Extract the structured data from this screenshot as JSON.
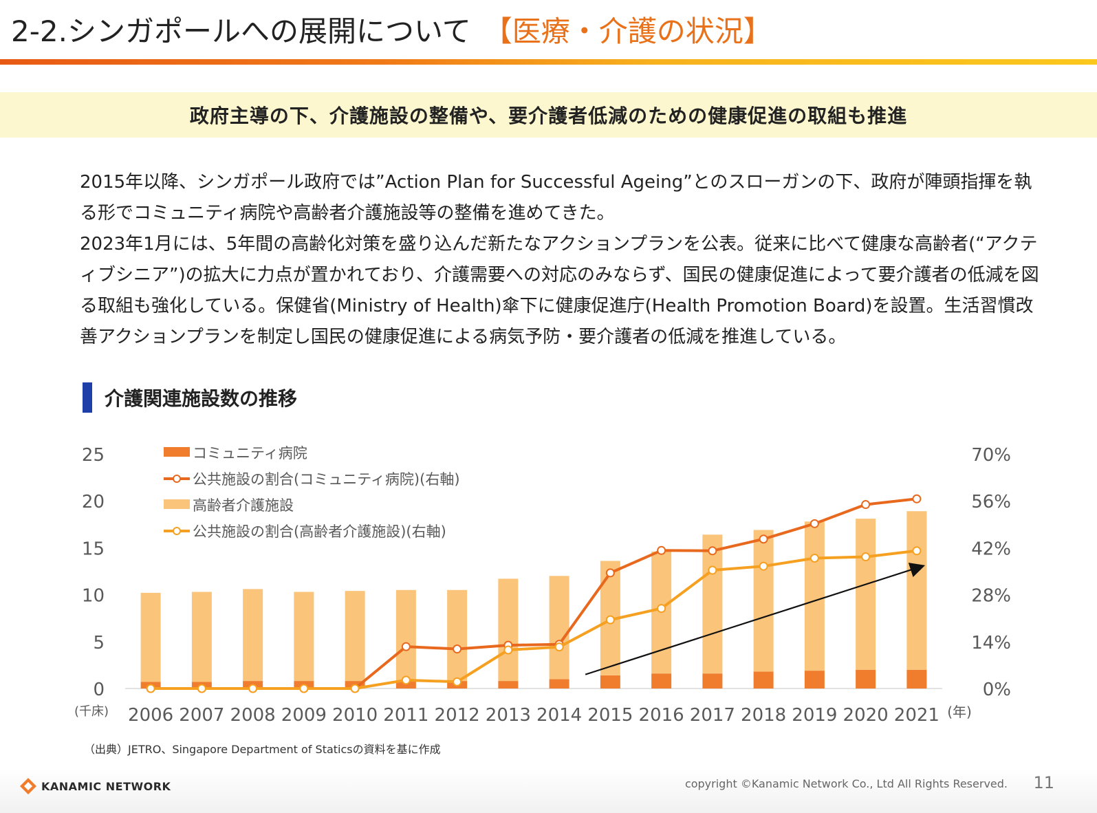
{
  "header": {
    "title": "2-2.シンガポールへの展開について",
    "title_accent": "【医療・介護の状況】"
  },
  "banner": {
    "text": "政府主導の下、介護施設の整備や、要介護者低減のための健康促進の取組も推進"
  },
  "body": {
    "paragraph1": "2015年以降、シンガポール政府では”Action Plan for Successful Ageing”とのスローガンの下、政府が陣頭指揮を執る形でコミュニティ病院や高齢者介護施設等の整備を進めてきた。",
    "paragraph2": "2023年1月には、5年間の高齢化対策を盛り込んだ新たなアクションプランを公表。従来に比べて健康な高齢者(“アクティブシニア”)の拡大に力点が置かれており、介護需要への対応のみならず、国民の健康促進によって要介護者の低減を図る取組も強化している。保健省(Ministry of Health)傘下に健康促進庁(Health Promotion Board)を設置。生活習慣改善アクションプランを制定し国民の健康促進による病気予防・要介護者の低減を推進している。"
  },
  "section": {
    "heading": "介護関連施設数の推移"
  },
  "chart_data": {
    "type": "bar",
    "title": "介護関連施設数の推移",
    "categories": [
      "2006",
      "2007",
      "2008",
      "2009",
      "2010",
      "2011",
      "2012",
      "2013",
      "2014",
      "2015",
      "2016",
      "2017",
      "2018",
      "2019",
      "2020",
      "2021"
    ],
    "xlabel": "(年)",
    "ylabel": "(千床)",
    "ylim": [
      0,
      25
    ],
    "yticks": [
      "0",
      "5",
      "10",
      "15",
      "20",
      "25"
    ],
    "y2lim": [
      0,
      70
    ],
    "y2ticks": [
      "0%",
      "14%",
      "28%",
      "42%",
      "56%",
      "70%"
    ],
    "stacked": true,
    "series": [
      {
        "name": "コミュニティ病院",
        "kind": "bar",
        "axis": "left",
        "color": "#f07d2d",
        "values": [
          0.7,
          0.7,
          0.8,
          0.8,
          0.8,
          0.8,
          0.8,
          0.8,
          1.0,
          1.4,
          1.6,
          1.6,
          1.8,
          1.9,
          2.0,
          2.0
        ]
      },
      {
        "name": "公共施設の割合(コミュニティ病院)(右軸)",
        "kind": "line",
        "axis": "right",
        "color": "#e8691e",
        "values": [
          0,
          0,
          0,
          0,
          0,
          12.5,
          11.8,
          12.9,
          13.2,
          34.5,
          41.2,
          41.1,
          44.6,
          49.2,
          54.9,
          56.6
        ]
      },
      {
        "name": "高齢者介護施設",
        "kind": "bar",
        "axis": "left",
        "color": "#fac47a",
        "values": [
          9.5,
          9.6,
          9.8,
          9.5,
          9.6,
          9.7,
          9.7,
          10.9,
          11.0,
          12.2,
          13.0,
          14.8,
          15.1,
          15.9,
          16.1,
          16.9
        ]
      },
      {
        "name": "公共施設の割合(高齢者介護施設)(右軸)",
        "kind": "line",
        "axis": "right",
        "color": "#f5a020",
        "values": [
          0,
          0,
          0,
          0,
          0,
          2.5,
          2.0,
          11.5,
          12.4,
          20.5,
          23.9,
          35.3,
          36.5,
          38.9,
          39.3,
          41.1
        ]
      }
    ],
    "annotation": "trend-arrow"
  },
  "source_note": "（出典）JETRO、Singapore Department of Staticsの資料を基に作成",
  "footer": {
    "logo_text": "KANAMIC NETWORK",
    "copyright": "copyright ©Kanamic Network Co., Ltd All Rights Reserved.",
    "page_number": "11"
  }
}
